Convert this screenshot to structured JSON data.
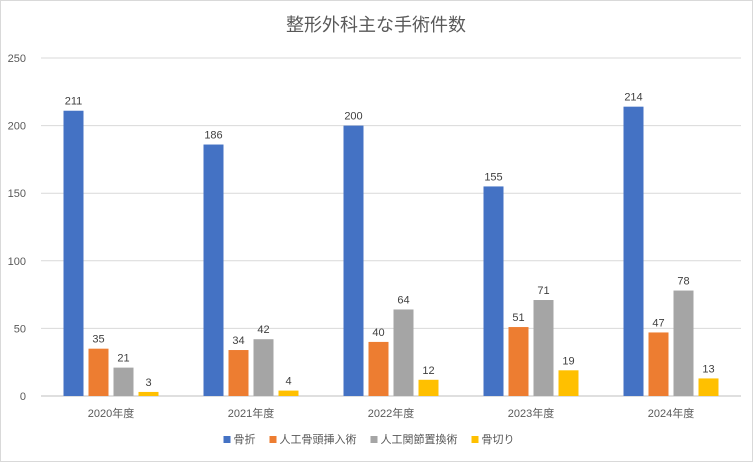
{
  "chart_data": {
    "type": "bar",
    "title": "整形外科主な手術件数",
    "categories": [
      "2020年度",
      "2021年度",
      "2022年度",
      "2023年度",
      "2024年度"
    ],
    "series": [
      {
        "name": "骨折",
        "color": "#4472c4",
        "values": [
          211,
          186,
          200,
          155,
          214
        ]
      },
      {
        "name": "人工骨頭挿入術",
        "color": "#ed7d31",
        "values": [
          35,
          34,
          40,
          51,
          47
        ]
      },
      {
        "name": "人工関節置換術",
        "color": "#a5a5a5",
        "values": [
          21,
          42,
          64,
          71,
          78
        ]
      },
      {
        "name": "骨切り",
        "color": "#ffc000",
        "values": [
          3,
          4,
          12,
          19,
          13
        ]
      }
    ],
    "ylim": [
      0,
      250
    ],
    "yticks": [
      "0",
      "50",
      "100",
      "150",
      "200",
      "250"
    ],
    "grid": true,
    "legend": "bottom",
    "data_labels": true
  }
}
